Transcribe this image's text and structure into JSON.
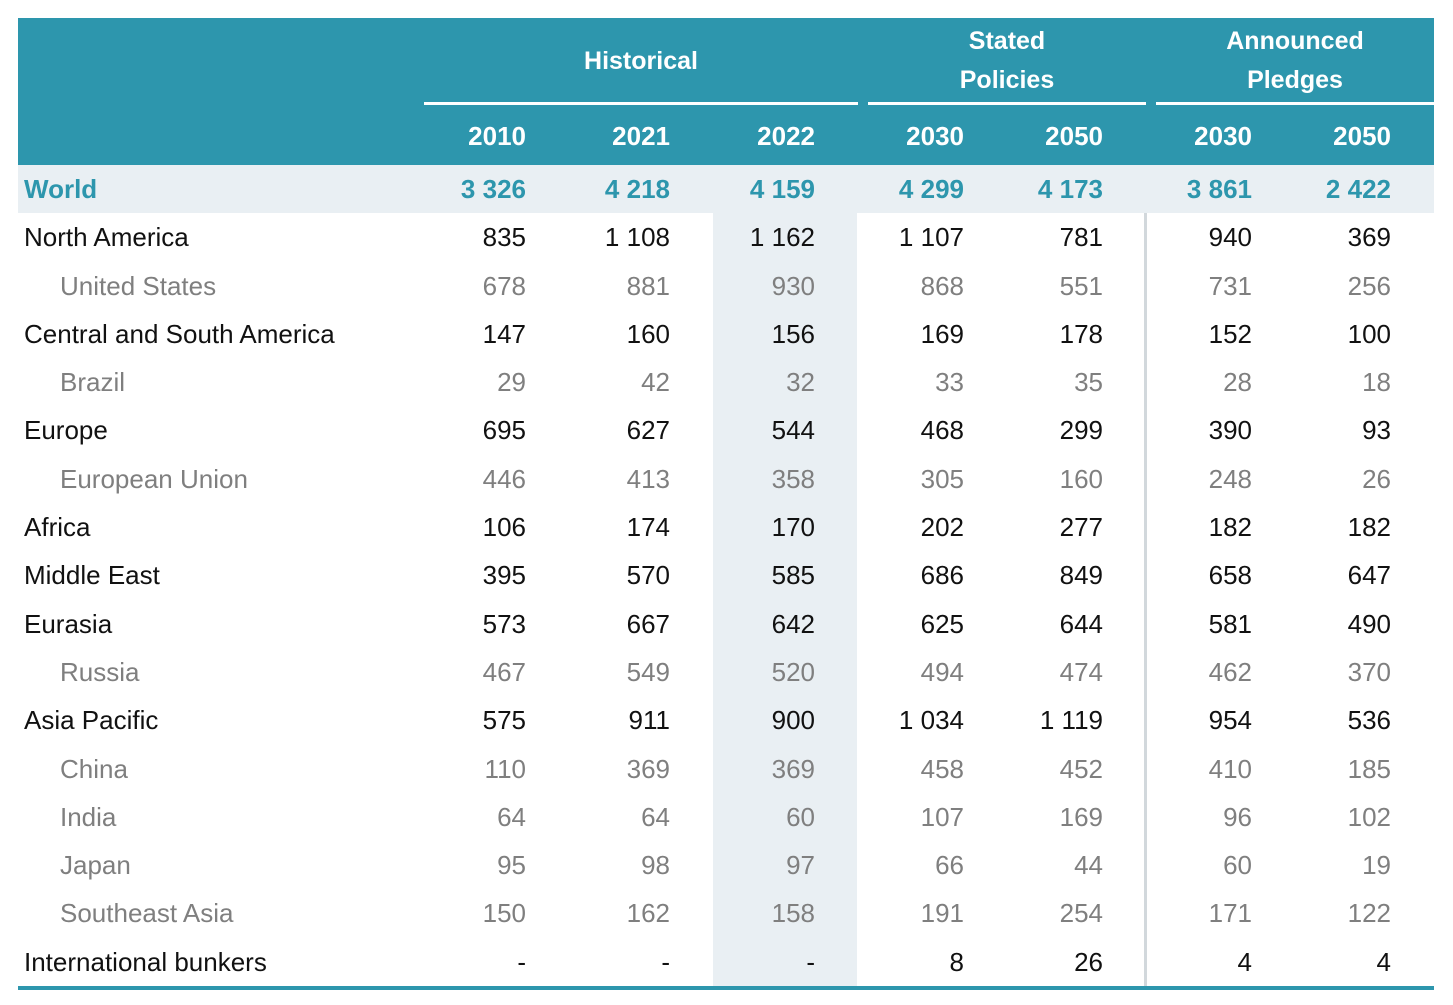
{
  "header": {
    "groups": [
      "Historical",
      "Stated\nPolicies",
      "Announced\nPledges"
    ],
    "years": [
      "2010",
      "2021",
      "2022",
      "2030",
      "2050",
      "2030",
      "2050"
    ]
  },
  "rows": [
    {
      "label": "World",
      "type": "world",
      "values": [
        "3 326",
        "4 218",
        "4 159",
        "4 299",
        "4 173",
        "3 861",
        "2 422"
      ]
    },
    {
      "label": "North America",
      "type": "region",
      "values": [
        "835",
        "1 108",
        "1 162",
        "1 107",
        "781",
        "940",
        "369"
      ]
    },
    {
      "label": "United States",
      "type": "sub",
      "values": [
        "678",
        "881",
        "930",
        "868",
        "551",
        "731",
        "256"
      ]
    },
    {
      "label": "Central and South America",
      "type": "region",
      "values": [
        "147",
        "160",
        "156",
        "169",
        "178",
        "152",
        "100"
      ]
    },
    {
      "label": "Brazil",
      "type": "sub",
      "values": [
        "29",
        "42",
        "32",
        "33",
        "35",
        "28",
        "18"
      ]
    },
    {
      "label": "Europe",
      "type": "region",
      "values": [
        "695",
        "627",
        "544",
        "468",
        "299",
        "390",
        "93"
      ]
    },
    {
      "label": "European Union",
      "type": "sub",
      "values": [
        "446",
        "413",
        "358",
        "305",
        "160",
        "248",
        "26"
      ]
    },
    {
      "label": "Africa",
      "type": "region",
      "values": [
        "106",
        "174",
        "170",
        "202",
        "277",
        "182",
        "182"
      ]
    },
    {
      "label": "Middle East",
      "type": "region",
      "values": [
        "395",
        "570",
        "585",
        "686",
        "849",
        "658",
        "647"
      ]
    },
    {
      "label": "Eurasia",
      "type": "region",
      "values": [
        "573",
        "667",
        "642",
        "625",
        "644",
        "581",
        "490"
      ]
    },
    {
      "label": "Russia",
      "type": "sub",
      "values": [
        "467",
        "549",
        "520",
        "494",
        "474",
        "462",
        "370"
      ]
    },
    {
      "label": "Asia Pacific",
      "type": "region",
      "values": [
        "575",
        "911",
        "900",
        "1 034",
        "1 119",
        "954",
        "536"
      ]
    },
    {
      "label": "China",
      "type": "sub",
      "values": [
        "110",
        "369",
        "369",
        "458",
        "452",
        "410",
        "185"
      ]
    },
    {
      "label": "India",
      "type": "sub",
      "values": [
        "64",
        "64",
        "60",
        "107",
        "169",
        "96",
        "102"
      ]
    },
    {
      "label": "Japan",
      "type": "sub",
      "values": [
        "95",
        "98",
        "97",
        "66",
        "44",
        "60",
        "19"
      ]
    },
    {
      "label": "Southeast Asia",
      "type": "sub",
      "values": [
        "150",
        "162",
        "158",
        "191",
        "254",
        "171",
        "122"
      ]
    },
    {
      "label": "International bunkers",
      "type": "region",
      "values": [
        "-",
        "-",
        "-",
        "8",
        "26",
        "4",
        "4"
      ]
    }
  ],
  "colors": {
    "accent": "#2d96ad",
    "shade": "#e9eff3",
    "sub_text": "#7f7f7f"
  }
}
